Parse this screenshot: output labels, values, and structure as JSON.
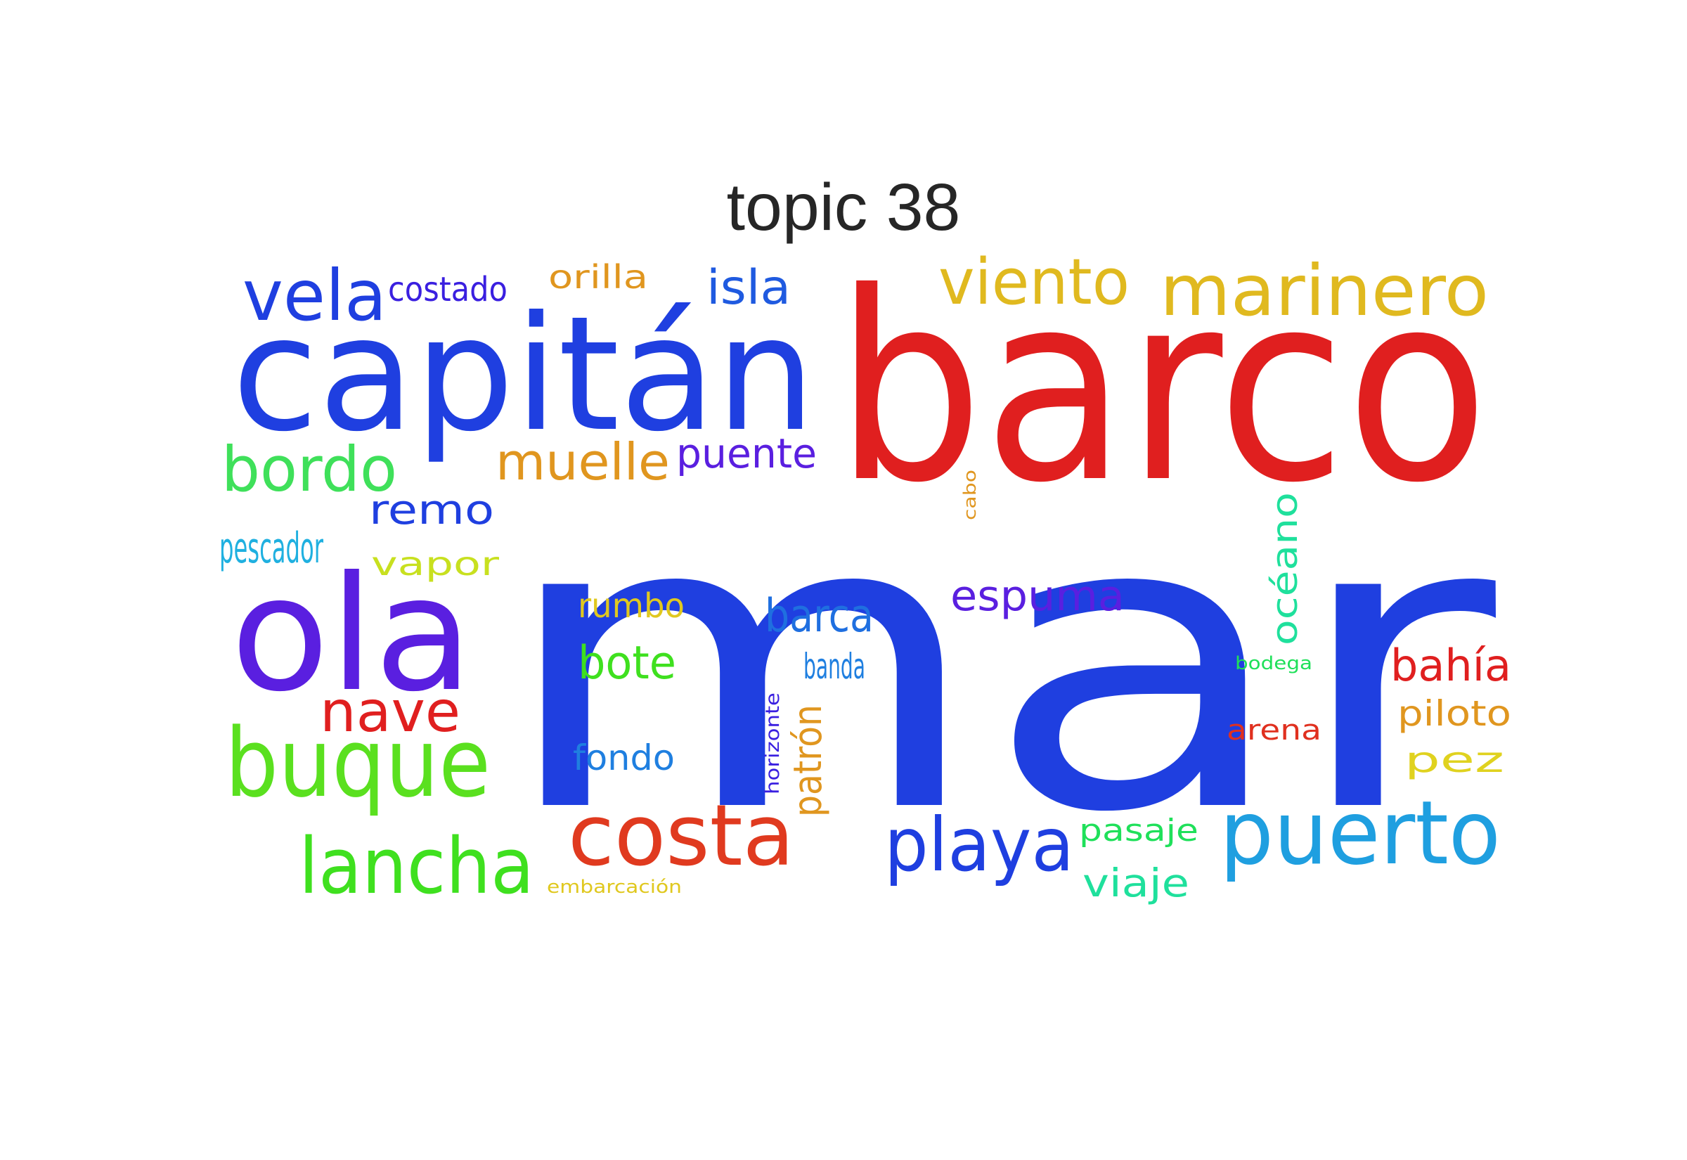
{
  "title": "topic 38",
  "words": [
    {
      "text": "mar",
      "color": "#1f3fe0"
    },
    {
      "text": "barco",
      "color": "#e01f1f"
    },
    {
      "text": "capitán",
      "color": "#1f3fe0"
    },
    {
      "text": "ola",
      "color": "#5a1fe0"
    },
    {
      "text": "buque",
      "color": "#5ae01f"
    },
    {
      "text": "puerto",
      "color": "#1f9fe0"
    },
    {
      "text": "costa",
      "color": "#e03a1f"
    },
    {
      "text": "playa",
      "color": "#1f3fe0"
    },
    {
      "text": "marinero",
      "color": "#e0b91f"
    },
    {
      "text": "lancha",
      "color": "#3fe01f"
    },
    {
      "text": "vela",
      "color": "#1f3fe0"
    },
    {
      "text": "viento",
      "color": "#e0b91f"
    },
    {
      "text": "bordo",
      "color": "#3fe05a"
    },
    {
      "text": "nave",
      "color": "#e01f1f"
    },
    {
      "text": "muelle",
      "color": "#e0961f"
    },
    {
      "text": "isla",
      "color": "#1f5ae0"
    },
    {
      "text": "barca",
      "color": "#1f6fe0"
    },
    {
      "text": "bote",
      "color": "#3fe01f"
    },
    {
      "text": "espuma",
      "color": "#5a1fe0"
    },
    {
      "text": "bahía",
      "color": "#e01f1f"
    },
    {
      "text": "puente",
      "color": "#5a1fe0"
    },
    {
      "text": "remo",
      "color": "#1f3fe0"
    },
    {
      "text": "pescador",
      "color": "#1fb0e0"
    },
    {
      "text": "vapor",
      "color": "#c8e01f"
    },
    {
      "text": "viaje",
      "color": "#1fe09c"
    },
    {
      "text": "costado",
      "color": "#3a1fe0"
    },
    {
      "text": "orilla",
      "color": "#e0961f"
    },
    {
      "text": "rumbo",
      "color": "#e0c81f"
    },
    {
      "text": "fondo",
      "color": "#1f7fe0"
    },
    {
      "text": "banda",
      "color": "#1f7fe0"
    },
    {
      "text": "piloto",
      "color": "#e0961f"
    },
    {
      "text": "pez",
      "color": "#e0d21f"
    },
    {
      "text": "pasaje",
      "color": "#1fe05a"
    },
    {
      "text": "arena",
      "color": "#e0301f"
    },
    {
      "text": "océano",
      "color": "#1fe09c"
    },
    {
      "text": "patrón",
      "color": "#e0961f"
    },
    {
      "text": "horizonte",
      "color": "#3a1fe0"
    },
    {
      "text": "cabo",
      "color": "#e0961f"
    },
    {
      "text": "bodega",
      "color": "#1fe05a"
    },
    {
      "text": "embarcación",
      "color": "#e0c81f"
    }
  ]
}
